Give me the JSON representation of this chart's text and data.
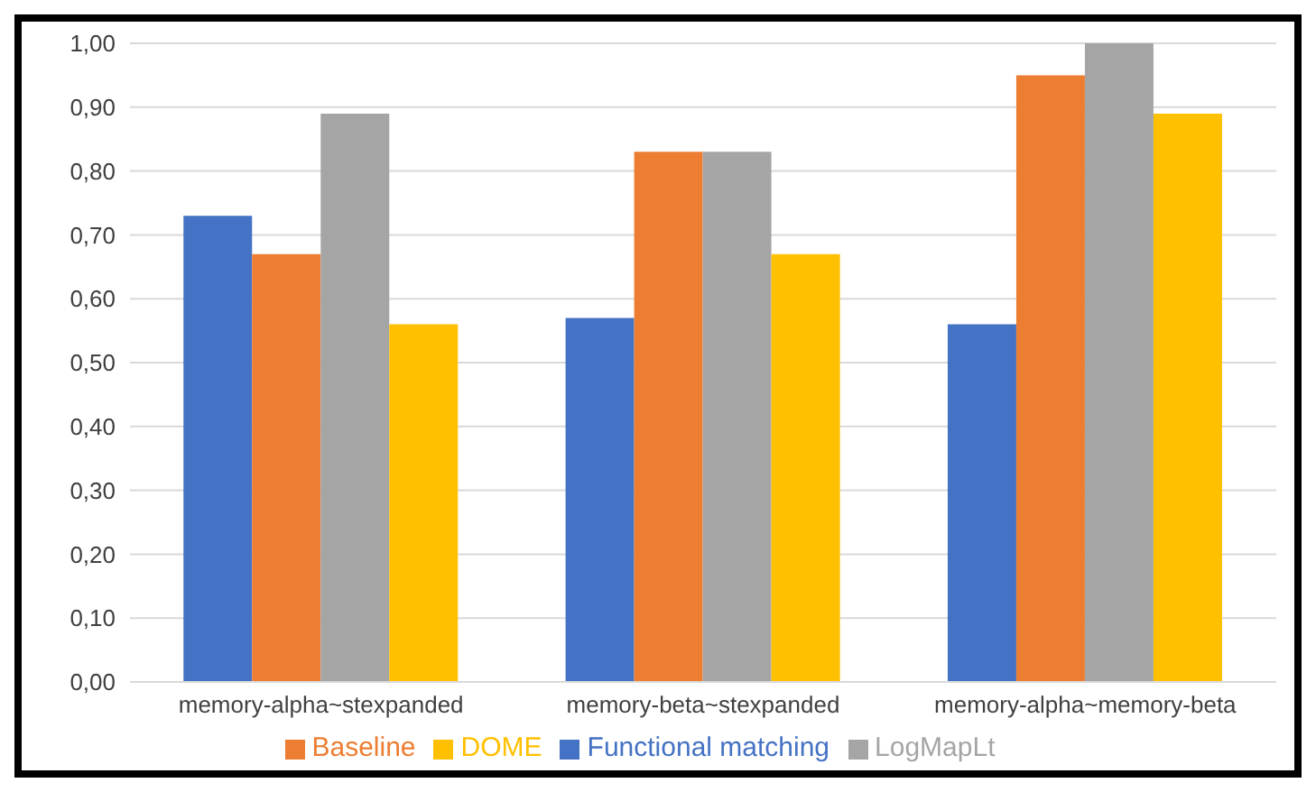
{
  "chart_data": {
    "type": "bar",
    "categories": [
      "memory-alpha~stexpanded",
      "memory-beta~stexpanded",
      "memory-alpha~memory-beta"
    ],
    "series": [
      {
        "name": "Functional matching",
        "color": "#4472c4",
        "values": [
          0.73,
          0.57,
          0.56
        ]
      },
      {
        "name": "Baseline",
        "color": "#ed7d31",
        "values": [
          0.67,
          0.83,
          0.95
        ]
      },
      {
        "name": "LogMapLt",
        "color": "#a5a5a5",
        "values": [
          0.89,
          0.83,
          1.0
        ]
      },
      {
        "name": "DOME",
        "color": "#ffc000",
        "values": [
          0.56,
          0.67,
          0.89
        ]
      }
    ],
    "ylim": [
      0,
      1
    ],
    "yticks": [
      {
        "value": 0,
        "label": "0,00"
      },
      {
        "value": 0.1,
        "label": "0,10"
      },
      {
        "value": 0.2,
        "label": "0,20"
      },
      {
        "value": 0.3,
        "label": "0,30"
      },
      {
        "value": 0.4,
        "label": "0,40"
      },
      {
        "value": 0.5,
        "label": "0,50"
      },
      {
        "value": 0.6,
        "label": "0,60"
      },
      {
        "value": 0.7,
        "label": "0,70"
      },
      {
        "value": 0.8,
        "label": "0,80"
      },
      {
        "value": 0.9,
        "label": "0,90"
      },
      {
        "value": 1,
        "label": "1,00"
      }
    ],
    "grid": "y",
    "legend": "bottom"
  }
}
